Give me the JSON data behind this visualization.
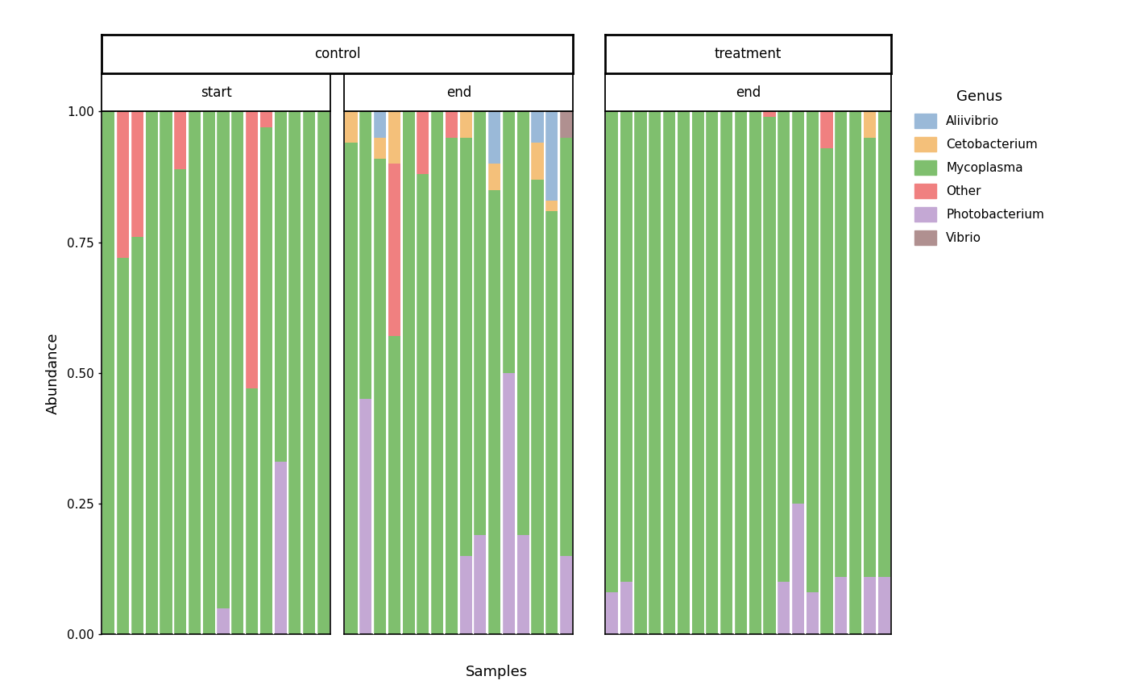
{
  "genera_order": [
    "Photobacterium",
    "Mycoplasma",
    "Other",
    "Cetobacterium",
    "Aliivibrio",
    "Vibrio"
  ],
  "genera_legend": [
    "Aliivibrio",
    "Cetobacterium",
    "Mycoplasma",
    "Other",
    "Photobacterium",
    "Vibrio"
  ],
  "colors": {
    "Aliivibrio": "#9ab9d8",
    "Cetobacterium": "#f4c07a",
    "Mycoplasma": "#7fbf6e",
    "Other": "#f08080",
    "Photobacterium": "#c4a8d4",
    "Vibrio": "#b09090"
  },
  "samples": {
    "control_start": [
      {
        "Aliivibrio": 0.0,
        "Cetobacterium": 0.0,
        "Mycoplasma": 1.0,
        "Other": 0.0,
        "Photobacterium": 0.0,
        "Vibrio": 0.0
      },
      {
        "Aliivibrio": 0.0,
        "Cetobacterium": 0.0,
        "Mycoplasma": 0.72,
        "Other": 0.28,
        "Photobacterium": 0.0,
        "Vibrio": 0.0
      },
      {
        "Aliivibrio": 0.0,
        "Cetobacterium": 0.0,
        "Mycoplasma": 0.76,
        "Other": 0.24,
        "Photobacterium": 0.0,
        "Vibrio": 0.0
      },
      {
        "Aliivibrio": 0.0,
        "Cetobacterium": 0.0,
        "Mycoplasma": 1.0,
        "Other": 0.0,
        "Photobacterium": 0.0,
        "Vibrio": 0.0
      },
      {
        "Aliivibrio": 0.0,
        "Cetobacterium": 0.0,
        "Mycoplasma": 1.0,
        "Other": 0.0,
        "Photobacterium": 0.0,
        "Vibrio": 0.0
      },
      {
        "Aliivibrio": 0.0,
        "Cetobacterium": 0.0,
        "Mycoplasma": 0.89,
        "Other": 0.11,
        "Photobacterium": 0.0,
        "Vibrio": 0.0
      },
      {
        "Aliivibrio": 0.0,
        "Cetobacterium": 0.0,
        "Mycoplasma": 1.0,
        "Other": 0.0,
        "Photobacterium": 0.0,
        "Vibrio": 0.0
      },
      {
        "Aliivibrio": 0.0,
        "Cetobacterium": 0.0,
        "Mycoplasma": 1.0,
        "Other": 0.0,
        "Photobacterium": 0.0,
        "Vibrio": 0.0
      },
      {
        "Aliivibrio": 0.0,
        "Cetobacterium": 0.0,
        "Mycoplasma": 0.95,
        "Other": 0.0,
        "Photobacterium": 0.05,
        "Vibrio": 0.0
      },
      {
        "Aliivibrio": 0.0,
        "Cetobacterium": 0.0,
        "Mycoplasma": 1.0,
        "Other": 0.0,
        "Photobacterium": 0.0,
        "Vibrio": 0.0
      },
      {
        "Aliivibrio": 0.0,
        "Cetobacterium": 0.0,
        "Mycoplasma": 0.47,
        "Other": 0.53,
        "Photobacterium": 0.0,
        "Vibrio": 0.0
      },
      {
        "Aliivibrio": 0.0,
        "Cetobacterium": 0.0,
        "Mycoplasma": 0.97,
        "Other": 0.03,
        "Photobacterium": 0.0,
        "Vibrio": 0.0
      },
      {
        "Aliivibrio": 0.0,
        "Cetobacterium": 0.0,
        "Mycoplasma": 0.67,
        "Other": 0.0,
        "Photobacterium": 0.33,
        "Vibrio": 0.0
      },
      {
        "Aliivibrio": 0.0,
        "Cetobacterium": 0.0,
        "Mycoplasma": 1.0,
        "Other": 0.0,
        "Photobacterium": 0.0,
        "Vibrio": 0.0
      },
      {
        "Aliivibrio": 0.0,
        "Cetobacterium": 0.0,
        "Mycoplasma": 1.0,
        "Other": 0.0,
        "Photobacterium": 0.0,
        "Vibrio": 0.0
      },
      {
        "Aliivibrio": 0.0,
        "Cetobacterium": 0.0,
        "Mycoplasma": 1.0,
        "Other": 0.0,
        "Photobacterium": 0.0,
        "Vibrio": 0.0
      }
    ],
    "control_end": [
      {
        "Aliivibrio": 0.0,
        "Cetobacterium": 0.06,
        "Mycoplasma": 0.94,
        "Other": 0.0,
        "Photobacterium": 0.0,
        "Vibrio": 0.0
      },
      {
        "Aliivibrio": 0.0,
        "Cetobacterium": 0.0,
        "Mycoplasma": 0.55,
        "Other": 0.0,
        "Photobacterium": 0.45,
        "Vibrio": 0.0
      },
      {
        "Aliivibrio": 0.05,
        "Cetobacterium": 0.04,
        "Mycoplasma": 0.91,
        "Other": 0.0,
        "Photobacterium": 0.0,
        "Vibrio": 0.0
      },
      {
        "Aliivibrio": 0.0,
        "Cetobacterium": 0.1,
        "Mycoplasma": 0.57,
        "Other": 0.33,
        "Photobacterium": 0.0,
        "Vibrio": 0.0
      },
      {
        "Aliivibrio": 0.0,
        "Cetobacterium": 0.0,
        "Mycoplasma": 1.0,
        "Other": 0.0,
        "Photobacterium": 0.0,
        "Vibrio": 0.0
      },
      {
        "Aliivibrio": 0.0,
        "Cetobacterium": 0.0,
        "Mycoplasma": 0.88,
        "Other": 0.12,
        "Photobacterium": 0.0,
        "Vibrio": 0.0
      },
      {
        "Aliivibrio": 0.0,
        "Cetobacterium": 0.0,
        "Mycoplasma": 1.0,
        "Other": 0.0,
        "Photobacterium": 0.0,
        "Vibrio": 0.0
      },
      {
        "Aliivibrio": 0.0,
        "Cetobacterium": 0.0,
        "Mycoplasma": 0.95,
        "Other": 0.05,
        "Photobacterium": 0.0,
        "Vibrio": 0.0
      },
      {
        "Aliivibrio": 0.0,
        "Cetobacterium": 0.05,
        "Mycoplasma": 0.8,
        "Other": 0.0,
        "Photobacterium": 0.15,
        "Vibrio": 0.0
      },
      {
        "Aliivibrio": 0.0,
        "Cetobacterium": 0.0,
        "Mycoplasma": 0.81,
        "Other": 0.0,
        "Photobacterium": 0.19,
        "Vibrio": 0.0
      },
      {
        "Aliivibrio": 0.1,
        "Cetobacterium": 0.05,
        "Mycoplasma": 0.85,
        "Other": 0.0,
        "Photobacterium": 0.0,
        "Vibrio": 0.0
      },
      {
        "Aliivibrio": 0.0,
        "Cetobacterium": 0.0,
        "Mycoplasma": 0.5,
        "Other": 0.0,
        "Photobacterium": 0.5,
        "Vibrio": 0.0
      },
      {
        "Aliivibrio": 0.0,
        "Cetobacterium": 0.0,
        "Mycoplasma": 0.81,
        "Other": 0.0,
        "Photobacterium": 0.19,
        "Vibrio": 0.0
      },
      {
        "Aliivibrio": 0.06,
        "Cetobacterium": 0.07,
        "Mycoplasma": 0.87,
        "Other": 0.0,
        "Photobacterium": 0.0,
        "Vibrio": 0.0
      },
      {
        "Aliivibrio": 0.17,
        "Cetobacterium": 0.02,
        "Mycoplasma": 0.81,
        "Other": 0.0,
        "Photobacterium": 0.0,
        "Vibrio": 0.0
      },
      {
        "Aliivibrio": 0.0,
        "Cetobacterium": 0.0,
        "Mycoplasma": 0.8,
        "Other": 0.0,
        "Photobacterium": 0.15,
        "Vibrio": 0.05
      }
    ],
    "treatment_end": [
      {
        "Aliivibrio": 0.0,
        "Cetobacterium": 0.0,
        "Mycoplasma": 0.92,
        "Other": 0.0,
        "Photobacterium": 0.08,
        "Vibrio": 0.0
      },
      {
        "Aliivibrio": 0.0,
        "Cetobacterium": 0.0,
        "Mycoplasma": 0.9,
        "Other": 0.0,
        "Photobacterium": 0.1,
        "Vibrio": 0.0
      },
      {
        "Aliivibrio": 0.0,
        "Cetobacterium": 0.0,
        "Mycoplasma": 1.0,
        "Other": 0.0,
        "Photobacterium": 0.0,
        "Vibrio": 0.0
      },
      {
        "Aliivibrio": 0.0,
        "Cetobacterium": 0.0,
        "Mycoplasma": 1.0,
        "Other": 0.0,
        "Photobacterium": 0.0,
        "Vibrio": 0.0
      },
      {
        "Aliivibrio": 0.0,
        "Cetobacterium": 0.0,
        "Mycoplasma": 1.0,
        "Other": 0.0,
        "Photobacterium": 0.0,
        "Vibrio": 0.0
      },
      {
        "Aliivibrio": 0.0,
        "Cetobacterium": 0.0,
        "Mycoplasma": 1.0,
        "Other": 0.0,
        "Photobacterium": 0.0,
        "Vibrio": 0.0
      },
      {
        "Aliivibrio": 0.0,
        "Cetobacterium": 0.0,
        "Mycoplasma": 1.0,
        "Other": 0.0,
        "Photobacterium": 0.0,
        "Vibrio": 0.0
      },
      {
        "Aliivibrio": 0.0,
        "Cetobacterium": 0.0,
        "Mycoplasma": 1.0,
        "Other": 0.0,
        "Photobacterium": 0.0,
        "Vibrio": 0.0
      },
      {
        "Aliivibrio": 0.0,
        "Cetobacterium": 0.0,
        "Mycoplasma": 1.0,
        "Other": 0.0,
        "Photobacterium": 0.0,
        "Vibrio": 0.0
      },
      {
        "Aliivibrio": 0.0,
        "Cetobacterium": 0.0,
        "Mycoplasma": 1.0,
        "Other": 0.0,
        "Photobacterium": 0.0,
        "Vibrio": 0.0
      },
      {
        "Aliivibrio": 0.0,
        "Cetobacterium": 0.0,
        "Mycoplasma": 1.0,
        "Other": 0.0,
        "Photobacterium": 0.0,
        "Vibrio": 0.0
      },
      {
        "Aliivibrio": 0.0,
        "Cetobacterium": 0.0,
        "Mycoplasma": 0.99,
        "Other": 0.01,
        "Photobacterium": 0.0,
        "Vibrio": 0.0
      },
      {
        "Aliivibrio": 0.0,
        "Cetobacterium": 0.0,
        "Mycoplasma": 0.9,
        "Other": 0.0,
        "Photobacterium": 0.1,
        "Vibrio": 0.0
      },
      {
        "Aliivibrio": 0.0,
        "Cetobacterium": 0.0,
        "Mycoplasma": 0.75,
        "Other": 0.0,
        "Photobacterium": 0.25,
        "Vibrio": 0.0
      },
      {
        "Aliivibrio": 0.0,
        "Cetobacterium": 0.0,
        "Mycoplasma": 0.92,
        "Other": 0.0,
        "Photobacterium": 0.08,
        "Vibrio": 0.0
      },
      {
        "Aliivibrio": 0.0,
        "Cetobacterium": 0.0,
        "Mycoplasma": 0.93,
        "Other": 0.07,
        "Photobacterium": 0.0,
        "Vibrio": 0.0
      },
      {
        "Aliivibrio": 0.0,
        "Cetobacterium": 0.0,
        "Mycoplasma": 0.89,
        "Other": 0.0,
        "Photobacterium": 0.11,
        "Vibrio": 0.0
      },
      {
        "Aliivibrio": 0.0,
        "Cetobacterium": 0.0,
        "Mycoplasma": 1.0,
        "Other": 0.0,
        "Photobacterium": 0.0,
        "Vibrio": 0.0
      },
      {
        "Aliivibrio": 0.0,
        "Cetobacterium": 0.05,
        "Mycoplasma": 0.84,
        "Other": 0.0,
        "Photobacterium": 0.11,
        "Vibrio": 0.0
      },
      {
        "Aliivibrio": 0.0,
        "Cetobacterium": 0.0,
        "Mycoplasma": 0.89,
        "Other": 0.0,
        "Photobacterium": 0.11,
        "Vibrio": 0.0
      }
    ]
  },
  "xlabel": "Samples",
  "ylabel": "Abundance",
  "background_color": "#ffffff",
  "bar_width": 0.85,
  "yticks": [
    0.0,
    0.25,
    0.5,
    0.75,
    1.0
  ],
  "ytick_labels": [
    "0.00",
    "0.25",
    "0.50",
    "0.75",
    "1.00"
  ]
}
